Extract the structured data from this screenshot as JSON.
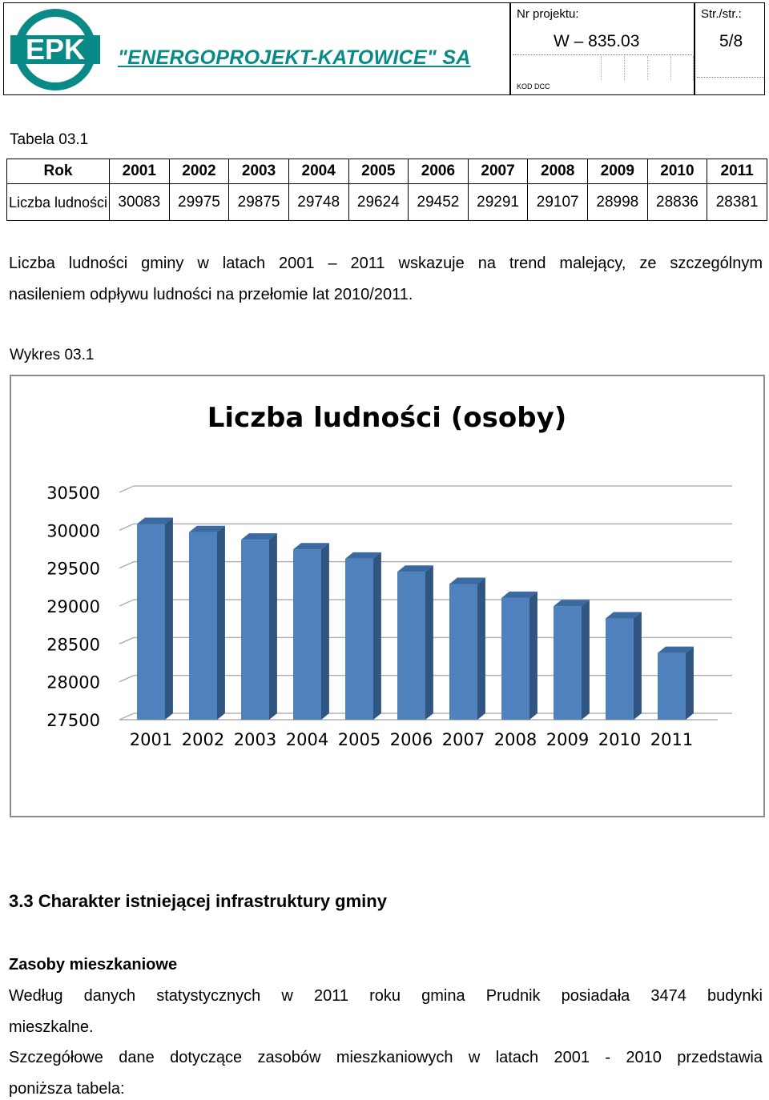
{
  "header": {
    "logo_text": "EPK",
    "company": "\"ENERGOPROJEKT-KATOWICE\" SA",
    "project_label": "Nr projektu:",
    "project_value": "W – 835.03",
    "page_label": "Str./str.:",
    "page_value": "5/8",
    "dcc_label": "KOD DCC"
  },
  "table_caption": "Tabela 03.1",
  "table": {
    "row_header": "Rok",
    "years": [
      "2001",
      "2002",
      "2003",
      "2004",
      "2005",
      "2006",
      "2007",
      "2008",
      "2009",
      "2010",
      "2011"
    ],
    "row_label": "Liczba ludności",
    "values": [
      "30083",
      "29975",
      "29875",
      "29748",
      "29624",
      "29452",
      "29291",
      "29107",
      "28998",
      "28836",
      "28381"
    ]
  },
  "para1": {
    "line1": "Liczba ludności gminy w latach 2001 – 2011 wskazuje na trend malejący, ze szczególnym",
    "line2": "nasileniem odpływu ludności na przełomie lat 2010/2011."
  },
  "chart_caption": "Wykres 03.1",
  "chart_data": {
    "type": "bar",
    "title": "Liczba ludności (osoby)",
    "categories": [
      "2001",
      "2002",
      "2003",
      "2004",
      "2005",
      "2006",
      "2007",
      "2008",
      "2009",
      "2010",
      "2011"
    ],
    "values": [
      30083,
      29975,
      29875,
      29748,
      29624,
      29452,
      29291,
      29107,
      28998,
      28836,
      28381
    ],
    "xlabel": "",
    "ylabel": "",
    "ylim": [
      27500,
      30500
    ],
    "yticks": [
      27500,
      28000,
      28500,
      29000,
      29500,
      30000,
      30500
    ],
    "grid": true,
    "legend": "none",
    "bar_color": "#4f81bd",
    "style": "3d"
  },
  "section": {
    "heading": "3.3  Charakter istniejącej infrastruktury gminy",
    "subheading": "Zasoby mieszkaniowe",
    "p1_line1": "Według danych statystycznych w 2011 roku gmina Prudnik posiadała 3474 budynki",
    "p1_line2": "mieszkalne.",
    "p2_line1": "Szczegółowe dane dotyczące zasobów mieszkaniowych w latach 2001 - 2010 przedstawia",
    "p2_line2": "poniższa tabela:"
  },
  "colors": {
    "brand_teal": "#0a8a86",
    "bar_front": "#4f81bd",
    "bar_top": "#3b6aa0",
    "bar_side": "#2f5580"
  }
}
